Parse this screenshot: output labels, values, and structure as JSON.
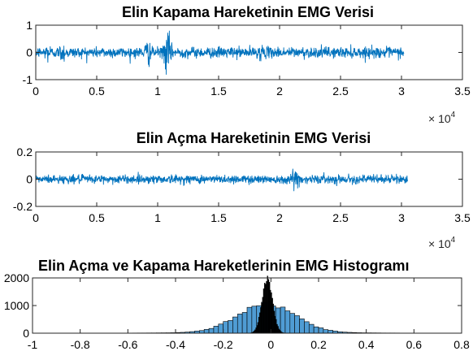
{
  "chart_data": [
    {
      "type": "line",
      "title": "Elin Kapama Hareketinin EMG Verisi",
      "xlabel": "",
      "ylabel": "",
      "xlim": [
        0,
        35000
      ],
      "ylim": [
        -1,
        1
      ],
      "x_scale_label": "× 10",
      "x_scale_exponent": "4",
      "xticks": [
        0,
        5000,
        10000,
        15000,
        20000,
        25000,
        30000,
        35000
      ],
      "xtick_labels": [
        "0",
        "0.5",
        "1",
        "1.5",
        "2",
        "2.5",
        "3",
        "3.5"
      ],
      "yticks": [
        -1,
        0,
        1
      ],
      "ytick_labels": [
        "-1",
        "0",
        "1"
      ],
      "series": [
        {
          "color": "#0072bd",
          "n_samples": 30200,
          "typical_amplitude": 0.22,
          "bursts": [
            {
              "x": 1000,
              "amplitude": 0.45
            },
            {
              "x": 2200,
              "amplitude": 0.45
            },
            {
              "x": 9200,
              "amplitude": 0.55
            },
            {
              "x": 10800,
              "amplitude": 0.9
            },
            {
              "x": 18500,
              "amplitude": 0.35
            }
          ]
        }
      ]
    },
    {
      "type": "line",
      "title": "Elin Açma Hareketinin EMG Verisi",
      "xlabel": "",
      "ylabel": "",
      "xlim": [
        0,
        35000
      ],
      "ylim": [
        -0.2,
        0.2
      ],
      "x_scale_label": "× 10",
      "x_scale_exponent": "4",
      "xticks": [
        0,
        5000,
        10000,
        15000,
        20000,
        25000,
        30000,
        35000
      ],
      "xtick_labels": [
        "0",
        "0.5",
        "1",
        "1.5",
        "2",
        "2.5",
        "3",
        "3.5"
      ],
      "yticks": [
        -0.2,
        0,
        0.2
      ],
      "ytick_labels": [
        "-0.2",
        "0",
        "0.2"
      ],
      "series": [
        {
          "color": "#0072bd",
          "n_samples": 30500,
          "typical_amplitude": 0.035,
          "bursts": [
            {
              "x": 21300,
              "amplitude": 0.12
            }
          ]
        }
      ]
    },
    {
      "type": "bar",
      "title": "Elin Açma ve Kapama Hareketlerinin EMG Histogramı",
      "xlabel": "",
      "ylabel": "",
      "xlim": [
        -1,
        0.8
      ],
      "ylim": [
        0,
        2000
      ],
      "xticks": [
        -1,
        -0.8,
        -0.6,
        -0.4,
        -0.2,
        0,
        0.2,
        0.4,
        0.6,
        0.8
      ],
      "xtick_labels": [
        "-1",
        "-0.8",
        "-0.6",
        "-0.4",
        "-0.2",
        "0",
        "0.2",
        "0.4",
        "0.6",
        "0.8"
      ],
      "yticks": [
        0,
        1000,
        2000
      ],
      "ytick_labels": [
        "0",
        "1000",
        "2000"
      ],
      "series": [
        {
          "name": "",
          "color": "#4f9cd4",
          "bin_width": 0.02,
          "center": -0.02,
          "peak": 1000,
          "sigma": 0.12,
          "range": [
            -0.8,
            0.72
          ]
        },
        {
          "name": "",
          "color": "#000000",
          "bin_width": 0.004,
          "center": -0.015,
          "peak": 1950,
          "sigma": 0.022,
          "range": [
            -0.18,
            0.15
          ]
        }
      ]
    }
  ]
}
